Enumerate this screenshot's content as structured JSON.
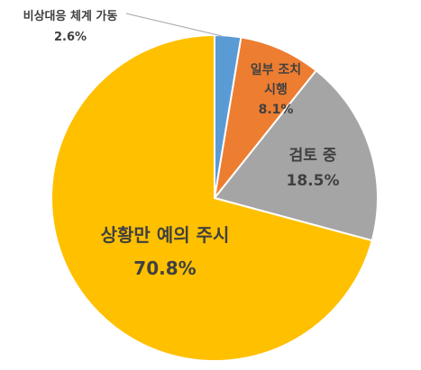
{
  "chart_data": {
    "type": "pie",
    "start_angle_deg": 0,
    "direction": "clockwise",
    "slices": [
      {
        "label": "비상대응 체계 가동",
        "value": 2.6,
        "value_label": "2.6%",
        "color": "#5B9BD5"
      },
      {
        "label": "일부 조치 시행",
        "label_lines": [
          "일부 조치",
          "시행"
        ],
        "value": 8.1,
        "value_label": "8.1%",
        "color": "#ED7D31"
      },
      {
        "label": "검토 중",
        "value": 18.5,
        "value_label": "18.5%",
        "color": "#A5A5A5"
      },
      {
        "label": "상황만 예의 주시",
        "value": 70.8,
        "value_label": "70.8%",
        "color": "#FFC000"
      }
    ]
  }
}
